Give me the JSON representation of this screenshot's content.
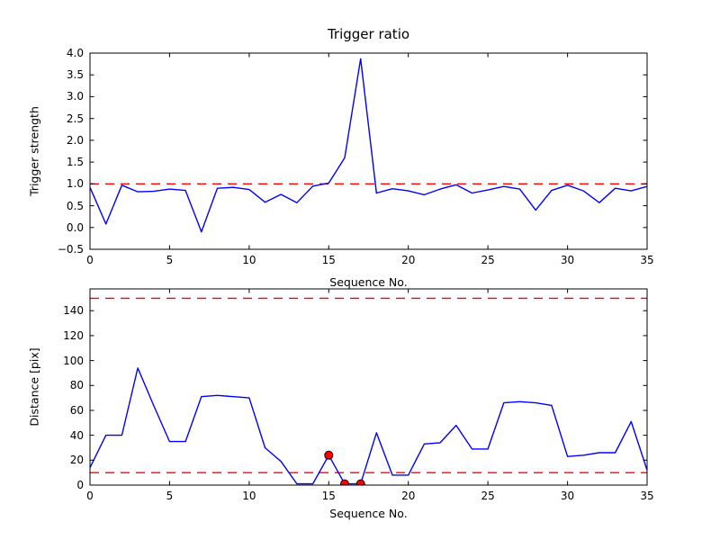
{
  "figure": {
    "bg_color": "#ffffff"
  },
  "colors": {
    "line": "#0000ff",
    "threshold": "#ff0000",
    "marker_fill": "#ff0000",
    "marker_edge": "#000000",
    "axis": "#000000",
    "text": "#000000"
  },
  "chart_data": [
    {
      "type": "line",
      "title": "Trigger ratio",
      "xlabel": "Sequence No.",
      "ylabel": "Trigger strength",
      "grid": false,
      "legend": null,
      "xlim": [
        0,
        35
      ],
      "ylim": [
        -0.5,
        4.0
      ],
      "x": [
        0,
        1,
        2,
        3,
        4,
        5,
        6,
        7,
        8,
        9,
        10,
        11,
        12,
        13,
        14,
        15,
        16,
        17,
        18,
        19,
        20,
        21,
        22,
        23,
        24,
        25,
        26,
        27,
        28,
        29,
        30,
        31,
        32,
        33,
        34,
        35
      ],
      "series": [
        {
          "name": "trigger_strength",
          "color": "#0000ff",
          "values": [
            0.92,
            0.08,
            0.97,
            0.82,
            0.83,
            0.88,
            0.85,
            -0.1,
            0.9,
            0.92,
            0.87,
            0.58,
            0.76,
            0.57,
            0.95,
            1.02,
            1.6,
            3.87,
            0.79,
            0.89,
            0.84,
            0.75,
            0.88,
            0.98,
            0.79,
            0.86,
            0.94,
            0.88,
            0.4,
            0.85,
            0.97,
            0.84,
            0.57,
            0.9,
            0.84,
            0.94
          ]
        }
      ],
      "threshold_lines": [
        {
          "value": 1.0,
          "style": "dashed",
          "color": "#ff0000"
        }
      ],
      "markers": [],
      "xticks": {
        "values": [
          0,
          5,
          10,
          15,
          20,
          25,
          30,
          35
        ],
        "labels": [
          "0",
          "5",
          "10",
          "15",
          "20",
          "25",
          "30",
          "35"
        ]
      },
      "yticks": {
        "values": [
          -0.5,
          0.0,
          0.5,
          1.0,
          1.5,
          2.0,
          2.5,
          3.0,
          3.5,
          4.0
        ],
        "labels": [
          "−0.5",
          "0.0",
          "0.5",
          "1.0",
          "1.5",
          "2.0",
          "2.5",
          "3.0",
          "3.5",
          "4.0"
        ]
      }
    },
    {
      "type": "line",
      "title": "",
      "xlabel": "Sequence No.",
      "ylabel": "Distance [pix]",
      "grid": false,
      "legend": null,
      "xlim": [
        0,
        35
      ],
      "ylim": [
        0,
        157.5
      ],
      "x": [
        0,
        1,
        2,
        3,
        4,
        5,
        6,
        7,
        8,
        9,
        10,
        11,
        12,
        13,
        14,
        15,
        16,
        17,
        18,
        19,
        20,
        21,
        22,
        23,
        24,
        25,
        26,
        27,
        28,
        29,
        30,
        31,
        32,
        33,
        34,
        35
      ],
      "series": [
        {
          "name": "distance",
          "color": "#0000ff",
          "values": [
            14,
            40,
            40,
            94,
            64,
            35,
            35,
            71,
            72,
            71,
            70,
            30,
            19,
            1,
            1,
            24,
            1,
            1,
            42,
            8,
            8,
            33,
            34,
            48,
            29,
            29,
            66,
            67,
            66,
            64,
            23,
            24,
            26,
            26,
            51,
            12
          ]
        }
      ],
      "threshold_lines": [
        {
          "value": 150,
          "style": "dashed",
          "color": "#ff0000"
        },
        {
          "value": 10,
          "style": "dashed",
          "color": "#ff0000"
        }
      ],
      "markers": [
        {
          "x": 15,
          "y": 24
        },
        {
          "x": 16,
          "y": 1
        },
        {
          "x": 17,
          "y": 1
        }
      ],
      "xticks": {
        "values": [
          0,
          5,
          10,
          15,
          20,
          25,
          30,
          35
        ],
        "labels": [
          "0",
          "5",
          "10",
          "15",
          "20",
          "25",
          "30",
          "35"
        ]
      },
      "yticks": {
        "values": [
          0,
          20,
          40,
          60,
          80,
          100,
          120,
          140
        ],
        "labels": [
          "0",
          "20",
          "40",
          "60",
          "80",
          "100",
          "120",
          "140"
        ]
      }
    }
  ]
}
